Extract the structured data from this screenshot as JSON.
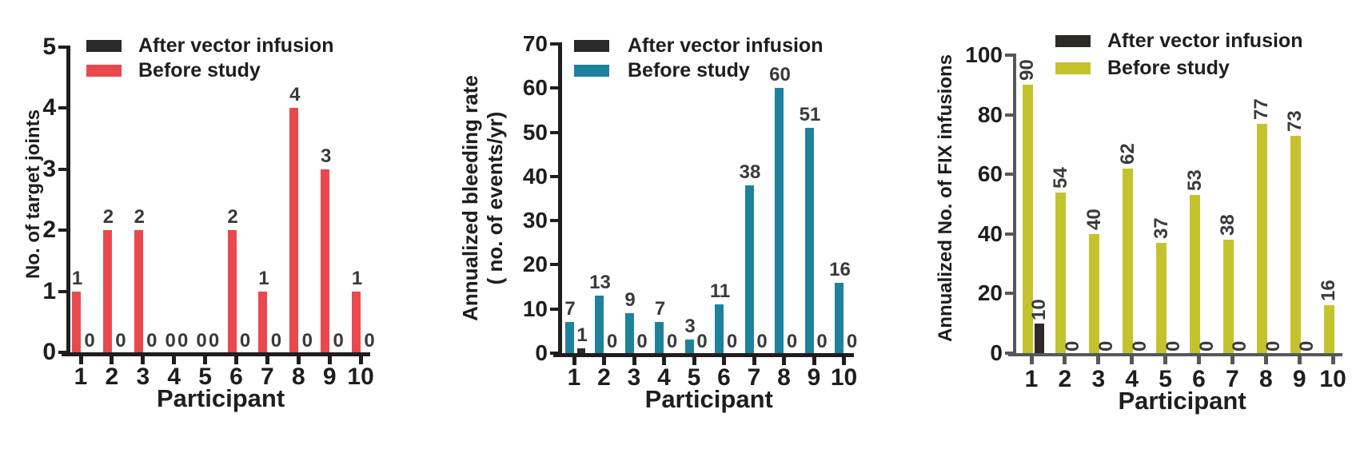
{
  "figure": {
    "background_color": "#FFFFFF",
    "description": "Three bar charts comparing outcomes before study vs after vector infusion for 10 participants"
  },
  "chart_data": [
    {
      "type": "bar",
      "panel": "left",
      "ylabel_lines": [
        "No. of target joints"
      ],
      "xlabel": "Participant",
      "ylim": [
        0,
        5
      ],
      "ytick_interval": 1,
      "yticks": [
        0,
        1,
        2,
        3,
        4,
        5
      ],
      "categories": [
        "1",
        "2",
        "3",
        "4",
        "5",
        "6",
        "7",
        "8",
        "9",
        "10"
      ],
      "legend": {
        "position": "top-left-inside",
        "entries": [
          {
            "label": "After vector infusion",
            "color": "#2B2A29"
          },
          {
            "label": "Before study",
            "color": "#E9494E"
          }
        ]
      },
      "series": [
        {
          "name": "After vector infusion",
          "role": "after",
          "color": "#2B2A29",
          "values": [
            0,
            0,
            0,
            0,
            0,
            0,
            0,
            0,
            0,
            0
          ]
        },
        {
          "name": "Before study",
          "role": "before",
          "color": "#E9494E",
          "values": [
            1,
            2,
            2,
            0,
            0,
            2,
            1,
            4,
            3,
            1
          ]
        }
      ],
      "value_labels_shown": true,
      "value_label_rotation_deg": 0,
      "axis_color": "#1F1D1E",
      "grid": false
    },
    {
      "type": "bar",
      "panel": "middle",
      "ylabel_lines": [
        "Annualized bleeding rate",
        "( no. of events/yr)"
      ],
      "xlabel": "Participant",
      "ylim": [
        0,
        70
      ],
      "ytick_interval": 10,
      "yticks": [
        0,
        10,
        20,
        30,
        40,
        50,
        60,
        70
      ],
      "categories": [
        "1",
        "2",
        "3",
        "4",
        "5",
        "6",
        "7",
        "8",
        "9",
        "10"
      ],
      "legend": {
        "position": "top-left-inside",
        "entries": [
          {
            "label": "After vector infusion",
            "color": "#2B2A29"
          },
          {
            "label": "Before study",
            "color": "#1F829C"
          }
        ]
      },
      "series": [
        {
          "name": "After vector infusion",
          "role": "after",
          "color": "#2B2A29",
          "values": [
            1,
            0,
            0,
            0,
            0,
            0,
            0,
            0,
            0,
            0
          ]
        },
        {
          "name": "Before study",
          "role": "before",
          "color": "#1F829C",
          "values": [
            7,
            13,
            9,
            7,
            3,
            11,
            38,
            60,
            51,
            16
          ]
        }
      ],
      "value_labels_shown": true,
      "value_label_rotation_deg": 0,
      "axis_color": "#1F1D1E",
      "grid": false
    },
    {
      "type": "bar",
      "panel": "right",
      "ylabel_lines": [
        "Annualized No. of FIX infusions"
      ],
      "xlabel": "Participant",
      "ylim": [
        0,
        100
      ],
      "ytick_interval": 20,
      "yticks": [
        0,
        20,
        40,
        60,
        80,
        100
      ],
      "categories": [
        "1",
        "2",
        "3",
        "4",
        "5",
        "6",
        "7",
        "8",
        "9",
        "10"
      ],
      "legend": {
        "position": "top-left-inside",
        "entries": [
          {
            "label": "After vector infusion",
            "color": "#2B2A29"
          },
          {
            "label": "Before study",
            "color": "#C4C32D"
          }
        ]
      },
      "series": [
        {
          "name": "After vector infusion",
          "role": "after",
          "color": "#2B2A29",
          "values": [
            10,
            0,
            0,
            0,
            0,
            0,
            0,
            0,
            0,
            0
          ]
        },
        {
          "name": "Before study",
          "role": "before",
          "color": "#C4C32D",
          "values": [
            90,
            54,
            40,
            62,
            37,
            53,
            38,
            77,
            73,
            16
          ]
        }
      ],
      "value_labels_shown": true,
      "value_label_rotation_deg": 90,
      "axis_color": "#56575B",
      "hidden_after_zero_label_categories": [
        "10"
      ],
      "grid": false
    }
  ]
}
